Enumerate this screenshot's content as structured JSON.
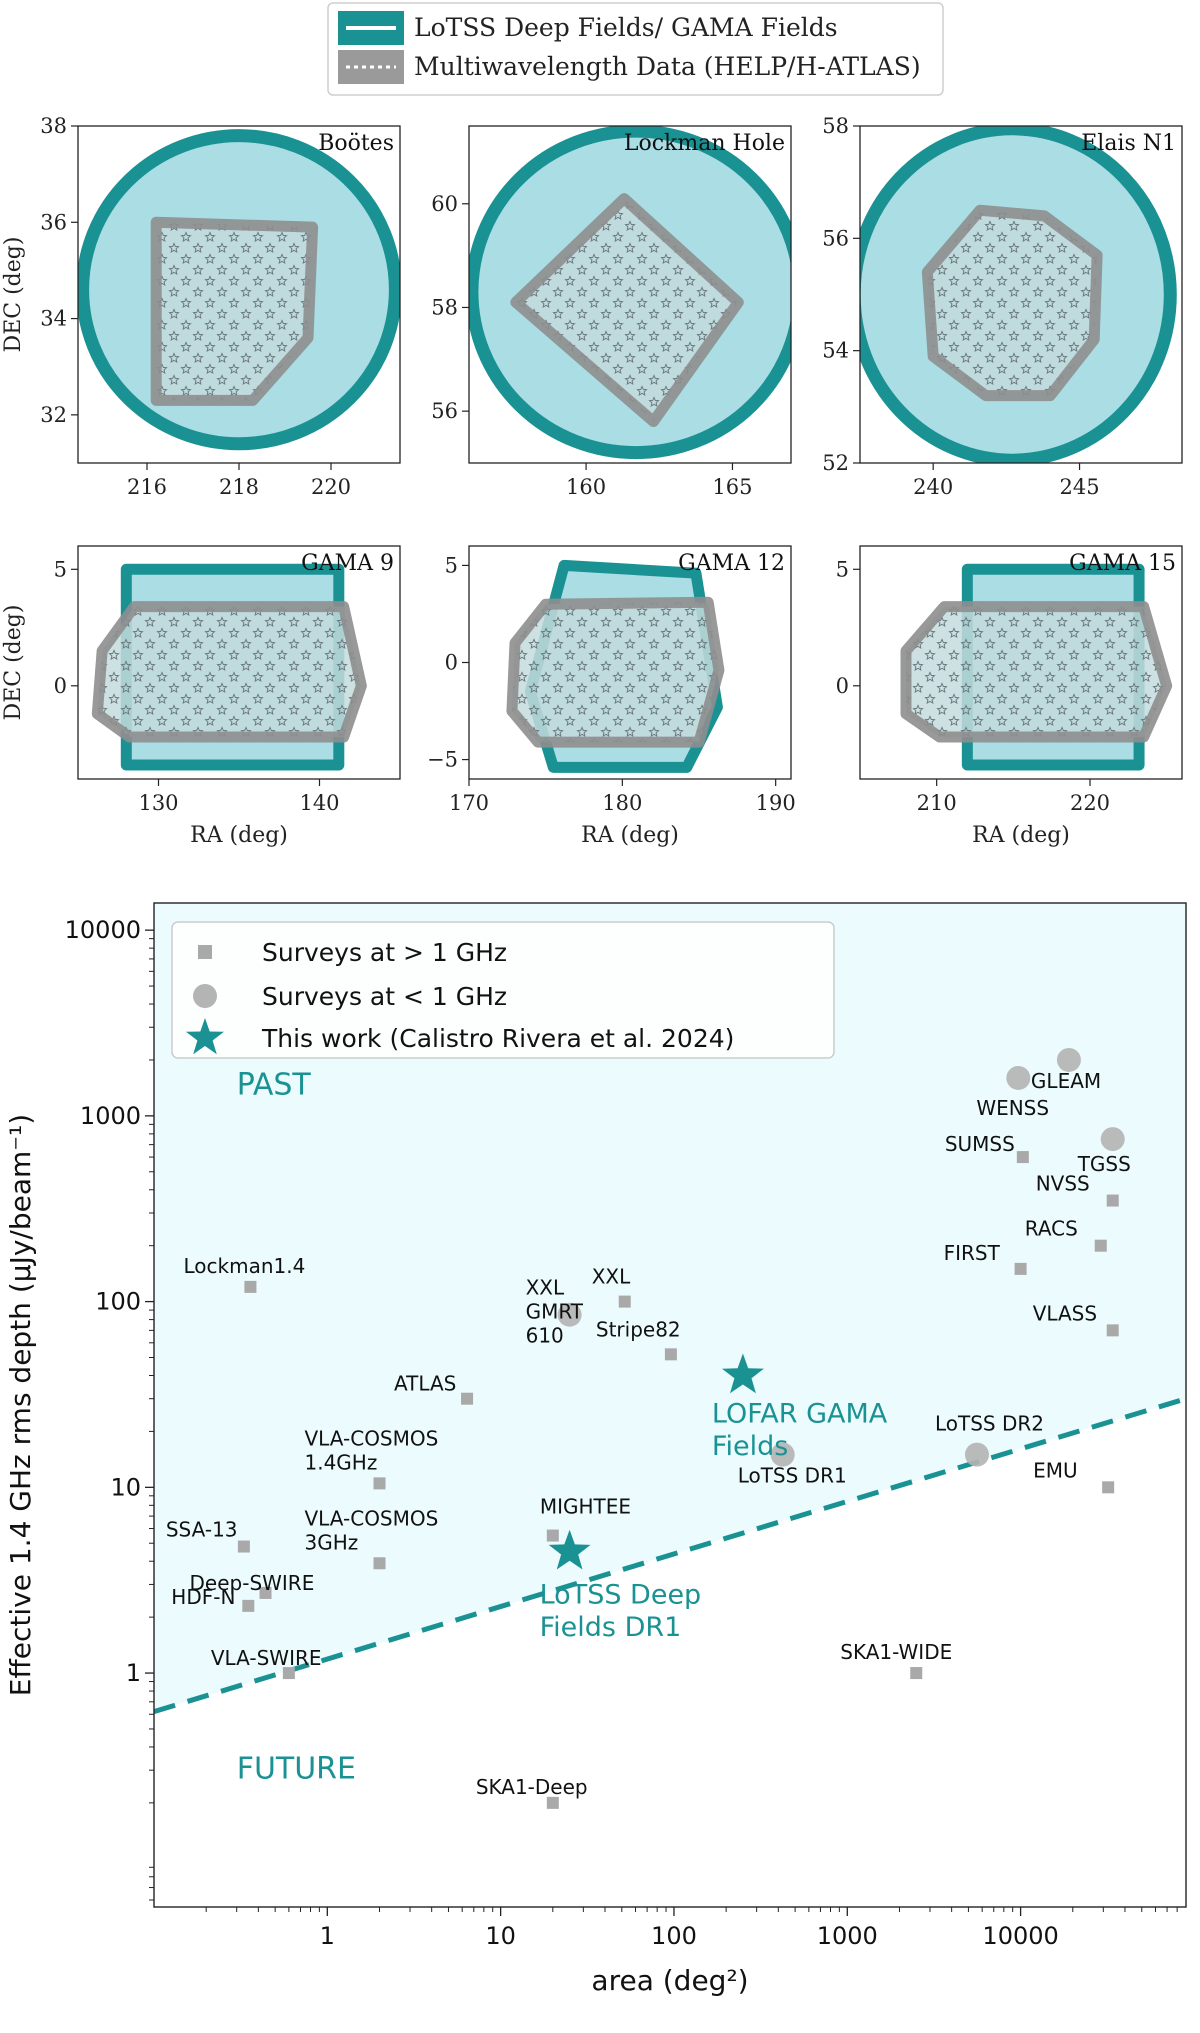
{
  "legend_top": {
    "items": [
      {
        "label": "LoTSS Deep Fields/ GAMA Fields",
        "style": "lotss"
      },
      {
        "label": "Multiwavelength Data (HELP/H-ATLAS)",
        "style": "help"
      }
    ]
  },
  "colors": {
    "teal": "#1a9294",
    "teal_fill": "#aadde4",
    "grey": "#8e8e8e",
    "grey_fill": "#c4dadd",
    "star": "#6b7b7f",
    "bottom_bg": "#ecfbfd",
    "marker": "#a9a9a9"
  },
  "shared_labels": {
    "dec": "DEC (deg)",
    "ra": "RA (deg)"
  },
  "chart_data": [
    {
      "type": "area",
      "title": "Boötes",
      "xlim": [
        214.5,
        221.5
      ],
      "ylim": [
        31,
        38
      ],
      "xticks": [
        216,
        218,
        220
      ],
      "yticks": [
        32,
        34,
        36,
        38
      ],
      "xlabel": "",
      "ylabel": "DEC (deg)",
      "shape": "circle",
      "lotss": {
        "center": [
          218,
          34.6
        ],
        "radius": [
          3.4,
          3.2
        ]
      },
      "help": [
        [
          216.2,
          36
        ],
        [
          219.6,
          35.9
        ],
        [
          219.5,
          33.6
        ],
        [
          218.3,
          32.3
        ],
        [
          216.2,
          32.3
        ]
      ]
    },
    {
      "type": "area",
      "title": "Lockman Hole",
      "xlim": [
        156,
        167
      ],
      "ylim": [
        55,
        61.5
      ],
      "xticks": [
        160,
        165
      ],
      "yticks": [
        56,
        58,
        60
      ],
      "xlabel": "",
      "ylabel": "",
      "shape": "circle",
      "lotss": {
        "center": [
          161.7,
          58.3
        ],
        "radius": [
          5.6,
          3.1
        ]
      },
      "help": [
        [
          161.3,
          60.1
        ],
        [
          165.2,
          58.1
        ],
        [
          162.3,
          55.8
        ],
        [
          157.6,
          58.1
        ]
      ]
    },
    {
      "type": "area",
      "title": "Elais N1",
      "xlim": [
        237.5,
        248.5
      ],
      "ylim": [
        52,
        58
      ],
      "xticks": [
        240,
        245
      ],
      "yticks": [
        52,
        54,
        56,
        58
      ],
      "xlabel": "",
      "ylabel": "",
      "shape": "circle",
      "lotss": {
        "center": [
          242.7,
          55
        ],
        "radius": [
          5.4,
          2.95
        ]
      },
      "help": [
        [
          241.6,
          56.5
        ],
        [
          243.8,
          56.4
        ],
        [
          245.6,
          55.7
        ],
        [
          245.5,
          54.2
        ],
        [
          244,
          53.2
        ],
        [
          241.8,
          53.2
        ],
        [
          240,
          53.9
        ],
        [
          239.8,
          55.4
        ]
      ]
    },
    {
      "type": "area",
      "title": "GAMA 9",
      "xlim": [
        125,
        145
      ],
      "ylim": [
        -4,
        6
      ],
      "xticks": [
        130,
        140
      ],
      "yticks": [
        -5,
        0,
        5
      ],
      "xlabel": "RA (deg)",
      "ylabel": "DEC (deg)",
      "shape": "rect",
      "lotss": [
        [
          128,
          5
        ],
        [
          141.2,
          5
        ],
        [
          141.2,
          -3.4
        ],
        [
          128,
          -3.4
        ]
      ],
      "help": [
        [
          126.5,
          1.5
        ],
        [
          128.5,
          3.4
        ],
        [
          141.5,
          3.4
        ],
        [
          142.6,
          0
        ],
        [
          141.5,
          -2.2
        ],
        [
          128.2,
          -2.2
        ],
        [
          126.2,
          -1.2
        ]
      ]
    },
    {
      "type": "area",
      "title": "GAMA 12",
      "xlim": [
        170,
        191
      ],
      "ylim": [
        -6,
        6
      ],
      "xticks": [
        170,
        180,
        190
      ],
      "yticks": [
        -5,
        0,
        5
      ],
      "xlabel": "RA (deg)",
      "ylabel": "",
      "shape": "rect",
      "lotss": [
        [
          176.2,
          5
        ],
        [
          184.8,
          4.6
        ],
        [
          186.2,
          -2.3
        ],
        [
          184.2,
          -5.4
        ],
        [
          175.5,
          -5.4
        ],
        [
          174,
          -1.5
        ]
      ],
      "help": [
        [
          173,
          1
        ],
        [
          175,
          3
        ],
        [
          185.6,
          3.1
        ],
        [
          186.3,
          -0.4
        ],
        [
          185,
          -4.1
        ],
        [
          174.5,
          -4.1
        ],
        [
          172.8,
          -2.5
        ]
      ]
    },
    {
      "type": "area",
      "title": "GAMA 15",
      "xlim": [
        205,
        226
      ],
      "ylim": [
        -4,
        6
      ],
      "xticks": [
        210,
        220
      ],
      "yticks": [
        -5,
        0,
        5
      ],
      "xlabel": "RA (deg)",
      "ylabel": "",
      "shape": "rect",
      "lotss": [
        [
          212,
          5
        ],
        [
          223.2,
          5
        ],
        [
          223.2,
          -3.4
        ],
        [
          212,
          -3.4
        ]
      ],
      "help": [
        [
          208,
          1.5
        ],
        [
          210.5,
          3.4
        ],
        [
          223.5,
          3.4
        ],
        [
          225,
          0
        ],
        [
          223.5,
          -2.2
        ],
        [
          210.2,
          -2.2
        ],
        [
          208,
          -1.2
        ]
      ]
    },
    {
      "type": "scatter",
      "xlabel": "area (deg²)",
      "ylabel": "Effective 1.4 GHz rms depth (µJy/beam⁻¹)",
      "xscale": "log",
      "yscale": "log",
      "xlim": [
        0.1,
        90000
      ],
      "ylim": [
        0.055,
        14000
      ],
      "xticks": [
        1,
        10,
        100,
        1000,
        10000
      ],
      "yticks": [
        1,
        10,
        100,
        1000,
        10000
      ],
      "legend": {
        "placement": "top-left",
        "entries": [
          {
            "label": "Surveys at > 1 GHz",
            "marker": "square"
          },
          {
            "label": "Surveys at < 1 GHz",
            "marker": "circle"
          },
          {
            "label": "This work (Calistro Rivera et al. 2024)",
            "marker": "star"
          }
        ]
      },
      "region_labels": {
        "past": "PAST",
        "future": "FUTURE"
      },
      "boundary_line": [
        [
          0.1,
          0.62
        ],
        [
          90000,
          30
        ]
      ],
      "surveys_high": [
        {
          "name": "Lockman1.4",
          "x": 0.36,
          "y": 120
        },
        {
          "name": "XXL",
          "x": 52,
          "y": 100
        },
        {
          "name": "Stripe82",
          "x": 96,
          "y": 52
        },
        {
          "name": "ATLAS",
          "x": 6.4,
          "y": 30
        },
        {
          "name": "VLA-COSMOS\n1.4GHz",
          "x": 2,
          "y": 10.5
        },
        {
          "name": "SSA-13",
          "x": 0.33,
          "y": 4.8
        },
        {
          "name": "VLA-COSMOS\n3GHz",
          "x": 2,
          "y": 3.9
        },
        {
          "name": "Deep-SWIRE",
          "x": 0.44,
          "y": 2.7
        },
        {
          "name": "HDF-N",
          "x": 0.35,
          "y": 2.3
        },
        {
          "name": "VLA-SWIRE",
          "x": 0.6,
          "y": 1.0
        },
        {
          "name": "MIGHTEE",
          "x": 20,
          "y": 5.5
        },
        {
          "name": "SKA1-Deep",
          "x": 20,
          "y": 0.2
        },
        {
          "name": "SKA1-WIDE",
          "x": 2500,
          "y": 1.0
        },
        {
          "name": "SUMSS",
          "x": 10300,
          "y": 600
        },
        {
          "name": "NVSS",
          "x": 34000,
          "y": 350
        },
        {
          "name": "RACS",
          "x": 29000,
          "y": 200
        },
        {
          "name": "FIRST",
          "x": 10000,
          "y": 150
        },
        {
          "name": "VLASS",
          "x": 34000,
          "y": 70
        },
        {
          "name": "EMU",
          "x": 32000,
          "y": 10
        }
      ],
      "surveys_low": [
        {
          "name": "GLEAM",
          "x": 19000,
          "y": 2000
        },
        {
          "name": "WENSS",
          "x": 9700,
          "y": 1600
        },
        {
          "name": "TGSS",
          "x": 34000,
          "y": 750
        },
        {
          "name": "XXL\nGMRT\n610",
          "x": 25,
          "y": 85
        },
        {
          "name": "LoTSS DR1",
          "x": 424,
          "y": 15
        },
        {
          "name": "LoTSS DR2",
          "x": 5600,
          "y": 15
        }
      ],
      "this_work": [
        {
          "name": "LOFAR GAMA\nFields",
          "x": 250,
          "y": 40
        },
        {
          "name": "LoTSS Deep\nFields DR1",
          "x": 25,
          "y": 4.5
        }
      ]
    }
  ]
}
